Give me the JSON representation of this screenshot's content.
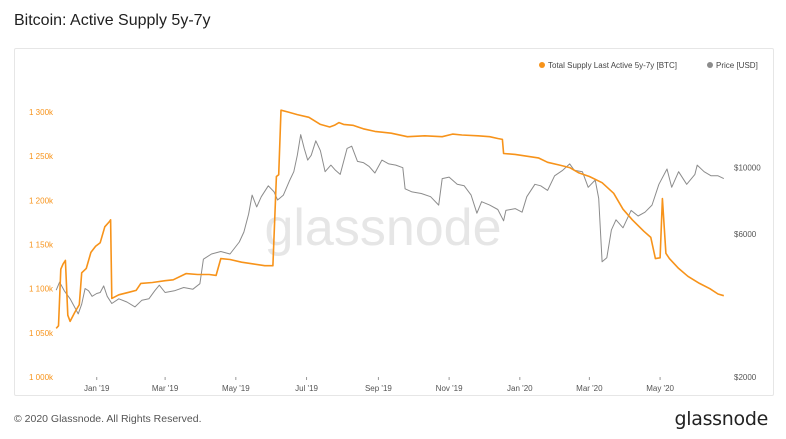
{
  "title": "Bitcoin: Active Supply 5y-7y",
  "footer": {
    "copyright": "© 2020 Glassnode. All Rights Reserved.",
    "brand": "glassnode"
  },
  "watermark": "glassnode",
  "colors": {
    "supply": "#f7931a",
    "price": "#8c8c8c",
    "left_axis": "#f7931a",
    "right_axis": "#555555"
  },
  "chart_data": {
    "type": "line",
    "title": "Bitcoin: Active Supply 5y-7y",
    "legend": {
      "placement": "top-right",
      "items": [
        "Total Supply Last Active 5y-7y [BTC]",
        "Price [USD]"
      ]
    },
    "x_ticks": [
      "Jan '19",
      "Mar '19",
      "May '19",
      "Jul '19",
      "Sep '19",
      "Nov '19",
      "Jan '20",
      "Mar '20",
      "May '20"
    ],
    "x_range": [
      "2018-11-26",
      "2020-06-26"
    ],
    "y_left": {
      "range": [
        1000000,
        1300000
      ],
      "ticks": [
        1000000,
        1050000,
        1100000,
        1150000,
        1200000,
        1250000,
        1300000
      ],
      "tick_labels": [
        "1 000k",
        "1 050k",
        "1 100k",
        "1 150k",
        "1 200k",
        "1 250k",
        "1 300k"
      ]
    },
    "y_right": {
      "scale": "log",
      "ticks": [
        2000,
        6000,
        10000
      ],
      "tick_labels": [
        "$2000",
        "$6000",
        "$10000"
      ]
    },
    "grid": false,
    "series": [
      {
        "name": "Total Supply Last Active 5y-7y [BTC]",
        "axis": "left",
        "points": [
          [
            "2018-11-27",
            1055000
          ],
          [
            "2018-11-29",
            1058000
          ],
          [
            "2018-12-01",
            1122000
          ],
          [
            "2018-12-03",
            1128000
          ],
          [
            "2018-12-05",
            1132000
          ],
          [
            "2018-12-07",
            1070000
          ],
          [
            "2018-12-09",
            1063000
          ],
          [
            "2018-12-13",
            1073000
          ],
          [
            "2018-12-17",
            1082000
          ],
          [
            "2018-12-19",
            1118000
          ],
          [
            "2018-12-23",
            1123000
          ],
          [
            "2018-12-27",
            1141000
          ],
          [
            "2018-12-31",
            1148000
          ],
          [
            "2019-01-04",
            1152000
          ],
          [
            "2019-01-08",
            1170000
          ],
          [
            "2019-01-12",
            1176000
          ],
          [
            "2019-01-13",
            1178000
          ],
          [
            "2019-01-14",
            1089000
          ],
          [
            "2019-01-20",
            1093000
          ],
          [
            "2019-01-29",
            1096000
          ],
          [
            "2019-02-04",
            1098000
          ],
          [
            "2019-02-08",
            1106000
          ],
          [
            "2019-02-18",
            1107000
          ],
          [
            "2019-03-01",
            1109000
          ],
          [
            "2019-03-08",
            1110000
          ],
          [
            "2019-03-19",
            1117000
          ],
          [
            "2019-03-29",
            1116000
          ],
          [
            "2019-04-08",
            1116000
          ],
          [
            "2019-04-14",
            1115000
          ],
          [
            "2019-04-18",
            1134000
          ],
          [
            "2019-04-26",
            1133000
          ],
          [
            "2019-05-06",
            1130000
          ],
          [
            "2019-05-16",
            1128000
          ],
          [
            "2019-05-26",
            1126000
          ],
          [
            "2019-06-02",
            1126000
          ],
          [
            "2019-06-05",
            1227000
          ],
          [
            "2019-06-07",
            1229000
          ],
          [
            "2019-06-09",
            1302000
          ],
          [
            "2019-06-15",
            1300000
          ],
          [
            "2019-06-23",
            1297000
          ],
          [
            "2019-07-03",
            1294000
          ],
          [
            "2019-07-13",
            1286000
          ],
          [
            "2019-07-21",
            1283000
          ],
          [
            "2019-07-25",
            1285000
          ],
          [
            "2019-07-29",
            1288000
          ],
          [
            "2019-08-02",
            1286000
          ],
          [
            "2019-08-10",
            1285000
          ],
          [
            "2019-08-19",
            1281000
          ],
          [
            "2019-08-29",
            1278000
          ],
          [
            "2019-09-12",
            1276000
          ],
          [
            "2019-09-26",
            1272000
          ],
          [
            "2019-10-11",
            1273000
          ],
          [
            "2019-10-26",
            1272000
          ],
          [
            "2019-11-04",
            1275000
          ],
          [
            "2019-11-12",
            1274000
          ],
          [
            "2019-11-26",
            1273000
          ],
          [
            "2019-12-06",
            1272000
          ],
          [
            "2019-12-13",
            1270000
          ],
          [
            "2019-12-17",
            1269000
          ],
          [
            "2019-12-18",
            1253000
          ],
          [
            "2019-12-28",
            1252000
          ],
          [
            "2020-01-07",
            1250000
          ],
          [
            "2020-01-17",
            1248000
          ],
          [
            "2020-01-25",
            1243000
          ],
          [
            "2020-02-04",
            1240000
          ],
          [
            "2020-02-13",
            1237000
          ],
          [
            "2020-02-21",
            1231000
          ],
          [
            "2020-03-01",
            1227000
          ],
          [
            "2020-03-12",
            1220000
          ],
          [
            "2020-03-22",
            1208000
          ],
          [
            "2020-03-30",
            1190000
          ],
          [
            "2020-04-07",
            1178000
          ],
          [
            "2020-04-17",
            1165000
          ],
          [
            "2020-04-23",
            1158000
          ],
          [
            "2020-04-27",
            1134000
          ],
          [
            "2020-05-01",
            1135000
          ],
          [
            "2020-05-03",
            1202000
          ],
          [
            "2020-05-06",
            1140000
          ],
          [
            "2020-05-09",
            1134000
          ],
          [
            "2020-05-17",
            1123000
          ],
          [
            "2020-05-25",
            1114000
          ],
          [
            "2020-06-04",
            1106000
          ],
          [
            "2020-06-13",
            1100000
          ],
          [
            "2020-06-20",
            1094000
          ],
          [
            "2020-06-25",
            1092000
          ]
        ]
      },
      {
        "name": "Price [USD]",
        "axis": "right",
        "points": [
          [
            "2018-11-27",
            3900
          ],
          [
            "2018-11-30",
            4150
          ],
          [
            "2018-12-04",
            3880
          ],
          [
            "2018-12-09",
            3650
          ],
          [
            "2018-12-13",
            3420
          ],
          [
            "2018-12-16",
            3250
          ],
          [
            "2018-12-19",
            3500
          ],
          [
            "2018-12-22",
            3950
          ],
          [
            "2018-12-25",
            3880
          ],
          [
            "2018-12-28",
            3720
          ],
          [
            "2019-01-01",
            3800
          ],
          [
            "2019-01-04",
            3830
          ],
          [
            "2019-01-07",
            4030
          ],
          [
            "2019-01-10",
            3720
          ],
          [
            "2019-01-14",
            3520
          ],
          [
            "2019-01-20",
            3650
          ],
          [
            "2019-01-27",
            3560
          ],
          [
            "2019-02-03",
            3430
          ],
          [
            "2019-02-09",
            3610
          ],
          [
            "2019-02-15",
            3650
          ],
          [
            "2019-02-20",
            3880
          ],
          [
            "2019-02-24",
            4050
          ],
          [
            "2019-03-01",
            3830
          ],
          [
            "2019-03-09",
            3880
          ],
          [
            "2019-03-17",
            3980
          ],
          [
            "2019-03-25",
            3930
          ],
          [
            "2019-03-31",
            4100
          ],
          [
            "2019-04-03",
            4950
          ],
          [
            "2019-04-10",
            5150
          ],
          [
            "2019-04-18",
            5250
          ],
          [
            "2019-04-26",
            5150
          ],
          [
            "2019-05-04",
            5650
          ],
          [
            "2019-05-08",
            6100
          ],
          [
            "2019-05-12",
            7000
          ],
          [
            "2019-05-15",
            8100
          ],
          [
            "2019-05-19",
            7400
          ],
          [
            "2019-05-23",
            8000
          ],
          [
            "2019-05-29",
            8700
          ],
          [
            "2019-06-03",
            8300
          ],
          [
            "2019-06-06",
            7800
          ],
          [
            "2019-06-11",
            8100
          ],
          [
            "2019-06-16",
            9000
          ],
          [
            "2019-06-20",
            9700
          ],
          [
            "2019-06-23",
            11000
          ],
          [
            "2019-06-26",
            12900
          ],
          [
            "2019-06-29",
            11600
          ],
          [
            "2019-07-02",
            10600
          ],
          [
            "2019-07-05",
            11000
          ],
          [
            "2019-07-09",
            12300
          ],
          [
            "2019-07-13",
            11400
          ],
          [
            "2019-07-17",
            9700
          ],
          [
            "2019-07-22",
            10200
          ],
          [
            "2019-07-26",
            9800
          ],
          [
            "2019-07-30",
            9500
          ],
          [
            "2019-08-05",
            11600
          ],
          [
            "2019-08-09",
            11800
          ],
          [
            "2019-08-14",
            10500
          ],
          [
            "2019-08-19",
            10400
          ],
          [
            "2019-08-24",
            10100
          ],
          [
            "2019-08-29",
            9600
          ],
          [
            "2019-09-04",
            10600
          ],
          [
            "2019-09-10",
            10300
          ],
          [
            "2019-09-16",
            10200
          ],
          [
            "2019-09-22",
            10000
          ],
          [
            "2019-09-24",
            8500
          ],
          [
            "2019-09-30",
            8300
          ],
          [
            "2019-10-08",
            8200
          ],
          [
            "2019-10-16",
            8000
          ],
          [
            "2019-10-23",
            7500
          ],
          [
            "2019-10-26",
            9200
          ],
          [
            "2019-11-01",
            9300
          ],
          [
            "2019-11-08",
            8800
          ],
          [
            "2019-11-14",
            8700
          ],
          [
            "2019-11-20",
            8100
          ],
          [
            "2019-11-25",
            7050
          ],
          [
            "2019-11-29",
            7700
          ],
          [
            "2019-12-06",
            7500
          ],
          [
            "2019-12-13",
            7250
          ],
          [
            "2019-12-18",
            6650
          ],
          [
            "2019-12-20",
            7200
          ],
          [
            "2019-12-28",
            7300
          ],
          [
            "2020-01-03",
            7100
          ],
          [
            "2020-01-07",
            8000
          ],
          [
            "2020-01-14",
            8800
          ],
          [
            "2020-01-19",
            8700
          ],
          [
            "2020-01-25",
            8400
          ],
          [
            "2020-01-31",
            9400
          ],
          [
            "2020-02-07",
            9800
          ],
          [
            "2020-02-13",
            10300
          ],
          [
            "2020-02-17",
            9800
          ],
          [
            "2020-02-24",
            9700
          ],
          [
            "2020-02-29",
            8600
          ],
          [
            "2020-03-06",
            9100
          ],
          [
            "2020-03-09",
            7900
          ],
          [
            "2020-03-12",
            4850
          ],
          [
            "2020-03-16",
            5000
          ],
          [
            "2020-03-20",
            6200
          ],
          [
            "2020-03-24",
            6700
          ],
          [
            "2020-03-30",
            6300
          ],
          [
            "2020-04-06",
            7200
          ],
          [
            "2020-04-12",
            6900
          ],
          [
            "2020-04-18",
            7100
          ],
          [
            "2020-04-24",
            7500
          ],
          [
            "2020-04-30",
            8800
          ],
          [
            "2020-05-07",
            9900
          ],
          [
            "2020-05-11",
            8600
          ],
          [
            "2020-05-17",
            9700
          ],
          [
            "2020-05-24",
            8800
          ],
          [
            "2020-05-31",
            9500
          ],
          [
            "2020-06-02",
            10200
          ],
          [
            "2020-06-08",
            9700
          ],
          [
            "2020-06-14",
            9400
          ],
          [
            "2020-06-20",
            9400
          ],
          [
            "2020-06-25",
            9200
          ]
        ]
      }
    ]
  }
}
